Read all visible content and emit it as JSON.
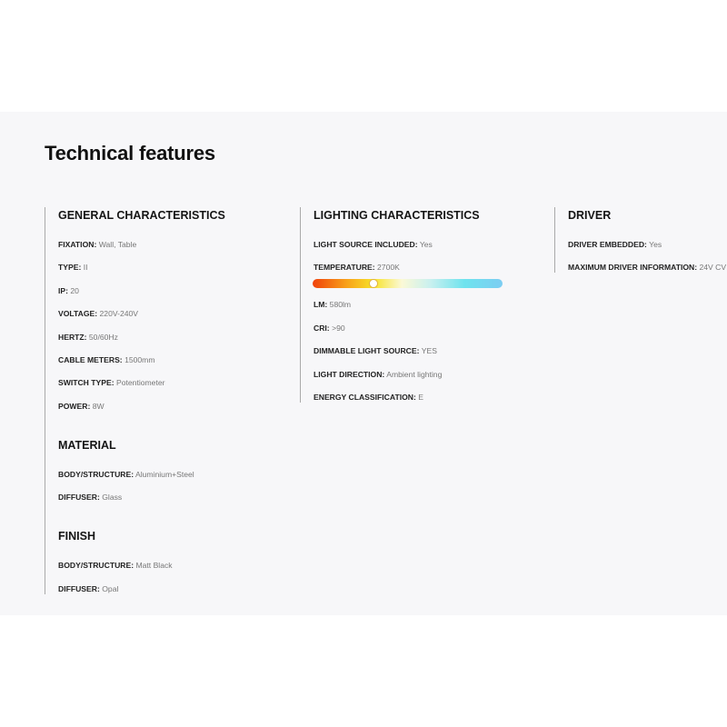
{
  "title": "Technical features",
  "columns": [
    {
      "sections": [
        {
          "heading": "GENERAL CHARACTERISTICS",
          "items": [
            {
              "label": "FIXATION:",
              "value": "Wall, Table"
            },
            {
              "label": "TYPE:",
              "value": "II"
            },
            {
              "label": "IP:",
              "value": "20"
            },
            {
              "label": "VOLTAGE:",
              "value": "220V-240V"
            },
            {
              "label": "HERTZ:",
              "value": "50/60Hz"
            },
            {
              "label": "CABLE METERS:",
              "value": "1500mm"
            },
            {
              "label": "SWITCH TYPE:",
              "value": "Potentiometer"
            },
            {
              "label": "POWER:",
              "value": "8W"
            }
          ]
        },
        {
          "heading": "MATERIAL",
          "items": [
            {
              "label": "BODY/STRUCTURE:",
              "value": "Aluminium+Steel"
            },
            {
              "label": "DIFFUSER:",
              "value": "Glass"
            }
          ]
        },
        {
          "heading": "FINISH",
          "items": [
            {
              "label": "BODY/STRUCTURE:",
              "value": "Matt Black"
            },
            {
              "label": "DIFFUSER:",
              "value": "Opal"
            }
          ]
        }
      ]
    },
    {
      "sections": [
        {
          "heading": "LIGHTING CHARACTERISTICS",
          "items": [
            {
              "label": "LIGHT SOURCE INCLUDED:",
              "value": "Yes"
            },
            {
              "label": "TEMPERATURE:",
              "value": "2700K"
            },
            {
              "label": "LM:",
              "value": "580lm"
            },
            {
              "label": "CRI:",
              "value": ">90"
            },
            {
              "label": "DIMMABLE LIGHT SOURCE:",
              "value": "YES"
            },
            {
              "label": "LIGHT DIRECTION:",
              "value": "Ambient lighting"
            },
            {
              "label": "ENERGY CLASSIFICATION:",
              "value": "E"
            }
          ]
        }
      ]
    },
    {
      "sections": [
        {
          "heading": "DRIVER",
          "items": [
            {
              "label": "DRIVER EMBEDDED:",
              "value": "Yes"
            },
            {
              "label": "MAXIMUM DRIVER INFORMATION:",
              "value": "24V CV"
            }
          ]
        }
      ]
    }
  ]
}
